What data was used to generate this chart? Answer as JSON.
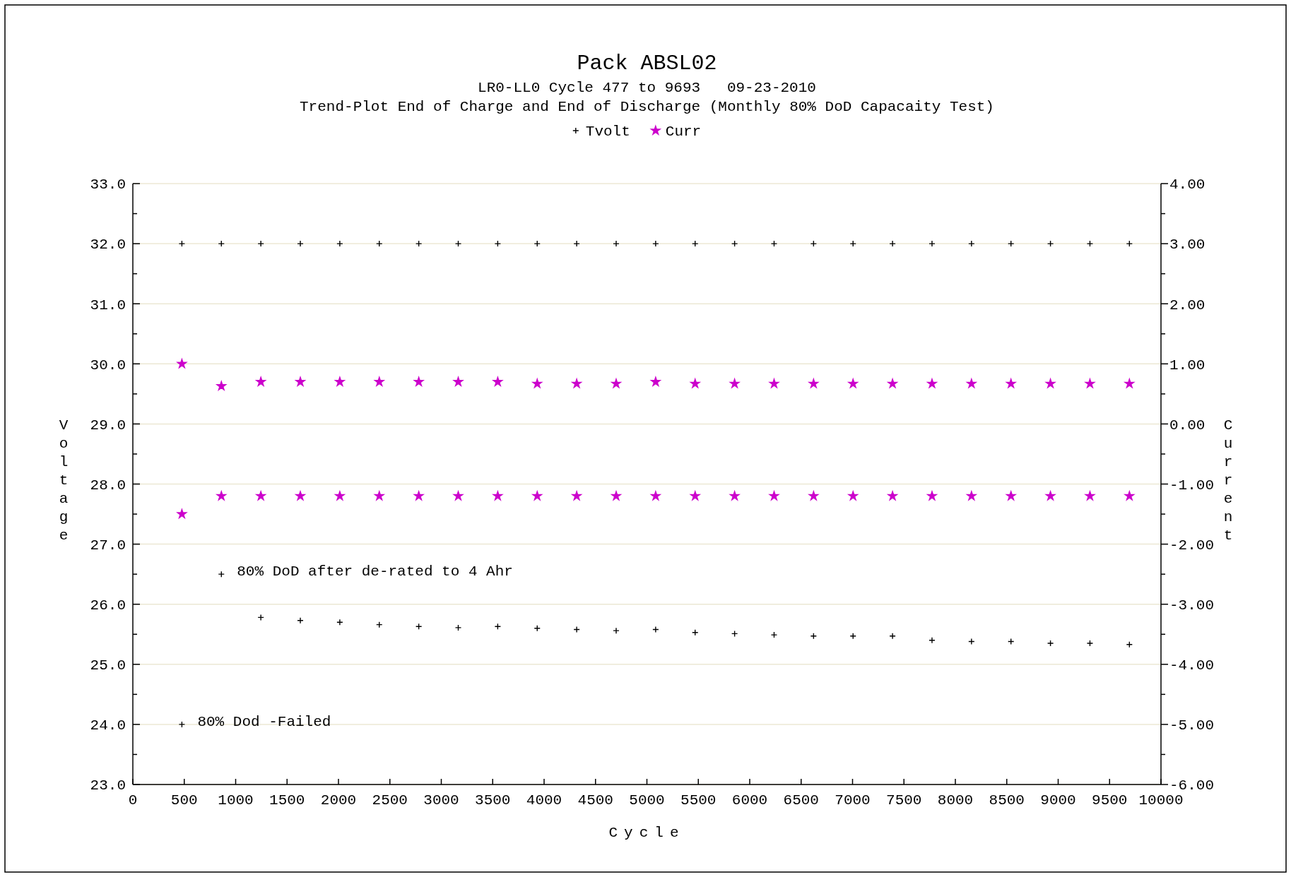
{
  "chart_data": {
    "type": "scatter",
    "title": "Pack ABSL02",
    "subtitle": "LR0-LL0 Cycle 477 to 9693   09-23-2010\nTrend-Plot End of Charge and End of Discharge (Monthly 80% DoD Capacaity Test)",
    "xlabel": "Cycle",
    "ylabel": "Voltage",
    "y2label": "Current",
    "xlim": [
      0,
      10000
    ],
    "xticks": [
      0,
      500,
      1000,
      1500,
      2000,
      2500,
      3000,
      3500,
      4000,
      4500,
      5000,
      5500,
      6000,
      6500,
      7000,
      7500,
      8000,
      8500,
      9000,
      9500,
      10000
    ],
    "ylim": [
      23,
      33
    ],
    "yticks": [
      {
        "value": 23,
        "label": "23.0"
      },
      {
        "value": 23.5,
        "label": null
      },
      {
        "value": 24,
        "label": "24.0"
      },
      {
        "value": 24.5,
        "label": null
      },
      {
        "value": 25,
        "label": "25.0"
      },
      {
        "value": 25.5,
        "label": null
      },
      {
        "value": 26,
        "label": "26.0"
      },
      {
        "value": 26.5,
        "label": null
      },
      {
        "value": 27,
        "label": "27.0"
      },
      {
        "value": 27.5,
        "label": null
      },
      {
        "value": 28,
        "label": "28.0"
      },
      {
        "value": 28.5,
        "label": null
      },
      {
        "value": 29,
        "label": "29.0"
      },
      {
        "value": 29.5,
        "label": null
      },
      {
        "value": 30,
        "label": "30.0"
      },
      {
        "value": 30.5,
        "label": null
      },
      {
        "value": 31,
        "label": "31.0"
      },
      {
        "value": 31.5,
        "label": null
      },
      {
        "value": 32,
        "label": "32.0"
      },
      {
        "value": 32.5,
        "label": null
      },
      {
        "value": 33,
        "label": "33.0"
      }
    ],
    "y2lim": [
      -6,
      4
    ],
    "y2ticks": [
      {
        "value": -6,
        "label": "-6.00"
      },
      {
        "value": -5.5,
        "label": null
      },
      {
        "value": -5,
        "label": "-5.00"
      },
      {
        "value": -4.5,
        "label": null
      },
      {
        "value": -4,
        "label": "-4.00"
      },
      {
        "value": -3.5,
        "label": null
      },
      {
        "value": -3,
        "label": "-3.00"
      },
      {
        "value": -2.5,
        "label": null
      },
      {
        "value": -2,
        "label": "-2.00"
      },
      {
        "value": -1.5,
        "label": null
      },
      {
        "value": -1,
        "label": "-1.00"
      },
      {
        "value": -0.5,
        "label": null
      },
      {
        "value": 0,
        "label": "0.00"
      },
      {
        "value": 0.5,
        "label": null
      },
      {
        "value": 1,
        "label": "1.00"
      },
      {
        "value": 1.5,
        "label": null
      },
      {
        "value": 2,
        "label": "2.00"
      },
      {
        "value": 2.5,
        "label": null
      },
      {
        "value": 3,
        "label": "3.00"
      },
      {
        "value": 3.5,
        "label": null
      },
      {
        "value": 4,
        "label": "4.00"
      }
    ],
    "grid": "y",
    "legend": "top",
    "annotations": [
      {
        "text": "80% DoD after de-rated to 4 Ahr",
        "x": 861,
        "y": 26.5
      },
      {
        "text": "80% Dod -Failed",
        "x": 477,
        "y": 24.0
      }
    ],
    "series": [
      {
        "name": "Tvolt",
        "color": "#000000",
        "marker": "cross",
        "x": [
          477,
          861,
          1245,
          1629,
          2013,
          2397,
          2781,
          3165,
          3549,
          3933,
          4317,
          4701,
          5085,
          5469,
          5853,
          6237,
          6621,
          7005,
          7389,
          7773,
          8157,
          8541,
          8925,
          9309,
          9693,
          477,
          861,
          1245,
          1629,
          2013,
          2397,
          2781,
          3165,
          3549,
          3933,
          4317,
          4701,
          5085,
          5469,
          5853,
          6237,
          6621,
          7005,
          7389,
          7773,
          8157,
          8541,
          8925,
          9309,
          9693
        ],
        "values": [
          32,
          32,
          32,
          32,
          32,
          32,
          32,
          32,
          32,
          32,
          32,
          32,
          32,
          32,
          32,
          32,
          32,
          32,
          32,
          32,
          32,
          32,
          32,
          32,
          32,
          24.0,
          26.5,
          25.78,
          25.73,
          25.7,
          25.66,
          25.63,
          25.61,
          25.63,
          25.6,
          25.58,
          25.56,
          25.58,
          25.53,
          25.51,
          25.49,
          25.47,
          25.47,
          25.47,
          25.4,
          25.38,
          25.38,
          25.35,
          25.35,
          25.33
        ]
      },
      {
        "name": "Curr",
        "color": "#cc00cc",
        "marker": "star",
        "axis": "y2",
        "x": [
          477,
          861,
          1245,
          1629,
          2013,
          2397,
          2781,
          3165,
          3549,
          3933,
          4317,
          4701,
          5085,
          5469,
          5853,
          6237,
          6621,
          7005,
          7389,
          7773,
          8157,
          8541,
          8925,
          9309,
          9693,
          477,
          861,
          1245,
          1629,
          2013,
          2397,
          2781,
          3165,
          3549,
          3933,
          4317,
          4701,
          5085,
          5469,
          5853,
          6237,
          6621,
          7005,
          7389,
          7773,
          8157,
          8541,
          8925,
          9309,
          9693
        ],
        "values": [
          1.0,
          0.63,
          0.7,
          0.7,
          0.7,
          0.7,
          0.7,
          0.7,
          0.7,
          0.67,
          0.67,
          0.67,
          0.7,
          0.67,
          0.67,
          0.67,
          0.67,
          0.67,
          0.67,
          0.67,
          0.67,
          0.67,
          0.67,
          0.67,
          0.67,
          -1.5,
          -1.2,
          -1.2,
          -1.2,
          -1.2,
          -1.2,
          -1.2,
          -1.2,
          -1.2,
          -1.2,
          -1.2,
          -1.2,
          -1.2,
          -1.2,
          -1.2,
          -1.2,
          -1.2,
          -1.2,
          -1.2,
          -1.2,
          -1.2,
          -1.2,
          -1.2,
          -1.2,
          -1.2
        ]
      }
    ]
  }
}
